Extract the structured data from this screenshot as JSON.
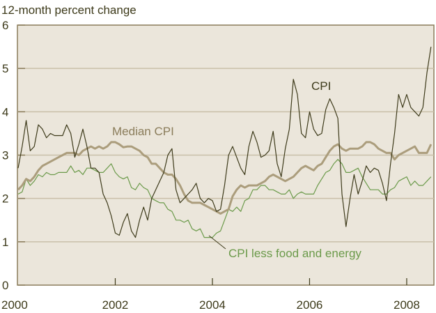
{
  "chart_data": {
    "type": "line",
    "ylabel": "12-month percent change",
    "ylim": [
      0,
      6
    ],
    "xlim": [
      2000,
      2008.56
    ],
    "yticks": [
      "0",
      "1",
      "2",
      "3",
      "4",
      "5",
      "6"
    ],
    "xticks": [
      "2000",
      "2002",
      "2004",
      "2006",
      "2008"
    ],
    "grid": true,
    "x_start": 2000,
    "frequency": "monthly",
    "series": [
      {
        "name": "CPI",
        "color": "#3d3a1a",
        "values": [
          2.7,
          3.2,
          3.8,
          3.1,
          3.2,
          3.7,
          3.6,
          3.4,
          3.5,
          3.45,
          3.45,
          3.45,
          3.7,
          3.5,
          2.95,
          3.25,
          3.6,
          3.2,
          2.7,
          2.7,
          2.6,
          2.1,
          1.9,
          1.6,
          1.2,
          1.15,
          1.45,
          1.65,
          1.25,
          1.1,
          1.5,
          1.8,
          1.5,
          2.0,
          2.2,
          2.4,
          2.6,
          3.0,
          3.15,
          2.2,
          1.9,
          2.0,
          2.1,
          2.2,
          2.35,
          2.0,
          1.9,
          2.0,
          1.95,
          1.7,
          1.75,
          2.3,
          3.0,
          3.2,
          2.95,
          2.7,
          2.55,
          3.2,
          3.55,
          3.3,
          2.95,
          3.0,
          3.1,
          3.55,
          2.8,
          2.5,
          3.15,
          3.6,
          4.75,
          4.4,
          3.5,
          3.4,
          4.0,
          3.6,
          3.45,
          3.5,
          4.05,
          4.3,
          4.1,
          3.85,
          2.1,
          1.35,
          2.0,
          2.55,
          2.1,
          2.4,
          2.75,
          2.6,
          2.7,
          2.65,
          2.35,
          1.95,
          2.8,
          3.5,
          4.4,
          4.1,
          4.4,
          4.1,
          4.0,
          3.9,
          4.1,
          4.9,
          5.5
        ]
      },
      {
        "name": "Median CPI",
        "color": "#ab9d7c",
        "values": [
          2.2,
          2.3,
          2.45,
          2.4,
          2.5,
          2.65,
          2.75,
          2.8,
          2.85,
          2.9,
          2.95,
          3.0,
          3.05,
          3.05,
          3.05,
          3.0,
          3.1,
          3.15,
          3.2,
          3.15,
          3.2,
          3.15,
          3.2,
          3.3,
          3.3,
          3.25,
          3.18,
          3.2,
          3.2,
          3.15,
          3.1,
          3.0,
          2.95,
          2.8,
          2.8,
          2.7,
          2.6,
          2.55,
          2.55,
          2.45,
          2.3,
          2.1,
          1.95,
          1.9,
          1.9,
          1.9,
          1.85,
          1.8,
          1.75,
          1.7,
          1.65,
          1.7,
          1.75,
          2.05,
          2.2,
          2.3,
          2.25,
          2.3,
          2.3,
          2.3,
          2.35,
          2.4,
          2.5,
          2.55,
          2.5,
          2.45,
          2.4,
          2.45,
          2.5,
          2.6,
          2.7,
          2.75,
          2.7,
          2.65,
          2.75,
          2.8,
          2.95,
          3.1,
          3.2,
          3.25,
          3.15,
          3.1,
          3.15,
          3.15,
          3.15,
          3.2,
          3.3,
          3.3,
          3.25,
          3.15,
          3.1,
          3.05,
          3.05,
          2.9,
          3.0,
          3.05,
          3.1,
          3.15,
          3.2,
          3.05,
          3.05,
          3.05,
          3.25
        ]
      },
      {
        "name": "CPI less food and energy",
        "color": "#6b9a4a",
        "values": [
          2.1,
          2.15,
          2.45,
          2.3,
          2.4,
          2.55,
          2.5,
          2.6,
          2.55,
          2.55,
          2.6,
          2.6,
          2.6,
          2.75,
          2.6,
          2.65,
          2.55,
          2.7,
          2.7,
          2.65,
          2.6,
          2.6,
          2.7,
          2.8,
          2.6,
          2.5,
          2.45,
          2.5,
          2.25,
          2.2,
          2.35,
          2.25,
          2.2,
          2.0,
          1.95,
          1.9,
          1.9,
          1.75,
          1.7,
          1.5,
          1.5,
          1.45,
          1.5,
          1.3,
          1.25,
          1.3,
          1.1,
          1.1,
          1.1,
          1.2,
          1.25,
          1.5,
          1.75,
          1.7,
          1.8,
          1.7,
          1.95,
          2.0,
          2.2,
          2.2,
          2.3,
          2.3,
          2.2,
          2.2,
          2.15,
          2.1,
          2.1,
          2.2,
          2.0,
          2.1,
          2.15,
          2.1,
          2.1,
          2.1,
          2.3,
          2.45,
          2.6,
          2.65,
          2.8,
          2.9,
          2.8,
          2.6,
          2.6,
          2.65,
          2.7,
          2.5,
          2.35,
          2.2,
          2.2,
          2.2,
          2.1,
          2.1,
          2.2,
          2.25,
          2.4,
          2.45,
          2.5,
          2.3,
          2.4,
          2.3,
          2.3,
          2.4,
          2.5
        ]
      }
    ],
    "annotations": [
      "CPI",
      "Median CPI",
      "CPI less food and energy"
    ]
  }
}
